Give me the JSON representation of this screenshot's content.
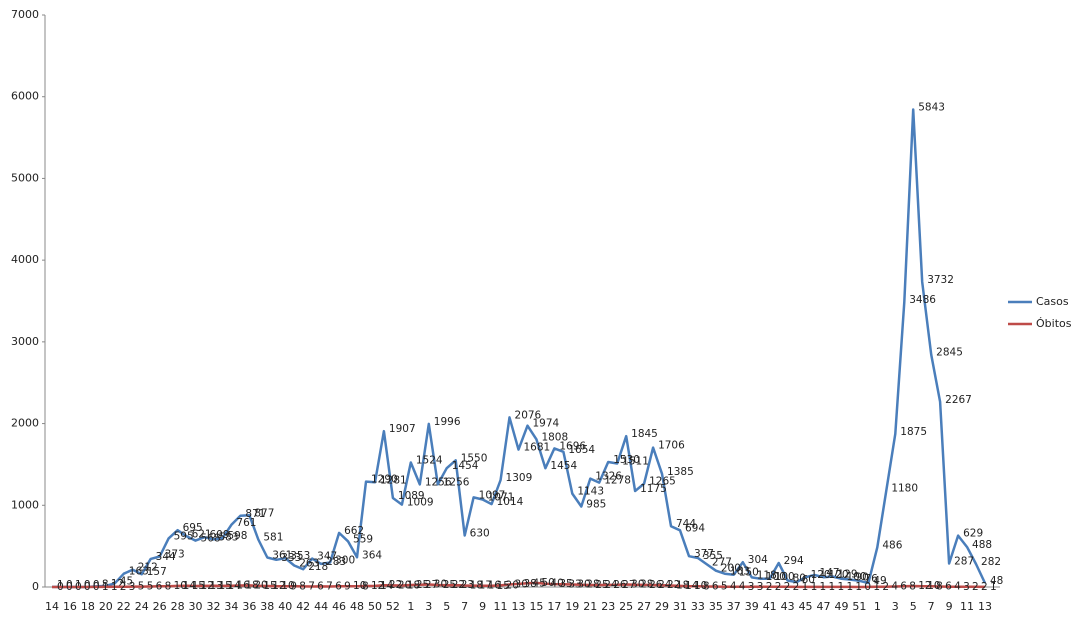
{
  "chart_data": {
    "type": "line",
    "categories": [
      "14",
      null,
      "16",
      null,
      "18",
      null,
      "20",
      null,
      "22",
      null,
      "24",
      null,
      "26",
      null,
      "28",
      null,
      "30",
      null,
      "32",
      null,
      "34",
      null,
      "36",
      null,
      "38",
      null,
      "40",
      null,
      "42",
      null,
      "44",
      null,
      "46",
      null,
      "48",
      null,
      "50",
      null,
      "52",
      null,
      "1",
      null,
      "3",
      null,
      "5",
      null,
      "7",
      null,
      "9",
      null,
      "11",
      null,
      "13",
      null,
      "15",
      null,
      "17",
      null,
      "19",
      null,
      "21",
      null,
      "23",
      null,
      "25",
      null,
      "27",
      null,
      "29",
      null,
      "31",
      null,
      "33",
      null,
      "35",
      null,
      "37",
      null,
      "39",
      null,
      "41",
      null,
      "43",
      null,
      "45",
      null,
      "47",
      null,
      "49",
      null,
      "51",
      null,
      "1",
      null,
      "3",
      null,
      "5",
      null,
      "7",
      null,
      "9",
      null,
      "11",
      null,
      "13"
    ],
    "series": [
      {
        "name": "Casos",
        "color": "#4a7ebb",
        "values": [
          1,
          0,
          1,
          0,
          0,
          8,
          12,
          45,
          163,
          212,
          157,
          344,
          373,
          595,
          695,
          621,
          568,
          609,
          583,
          598,
          761,
          871,
          877,
          581,
          361,
          333,
          353,
          263,
          218,
          347,
          283,
          300,
          662,
          559,
          364,
          1290,
          1281,
          1907,
          1089,
          1009,
          1524,
          1256,
          1996,
          1256,
          1454,
          1550,
          630,
          1097,
          1071,
          1014,
          1309,
          2076,
          1681,
          1974,
          1808,
          1454,
          1696,
          1654,
          1143,
          985,
          1326,
          1278,
          1530,
          1511,
          1845,
          1175,
          1265,
          1706,
          1385,
          744,
          694,
          377,
          355,
          277,
          200,
          163,
          150,
          304,
          118,
          100,
          100,
          294,
          80,
          60,
          120,
          147,
          120,
          129,
          100,
          90,
          76,
          49,
          486,
          1180,
          1875,
          3486,
          5843,
          3732,
          2845,
          2267,
          287,
          629,
          488,
          282,
          48
        ]
      },
      {
        "name": "Óbitos",
        "color": "#be4b48",
        "values": [
          0,
          0,
          0,
          0,
          0,
          1,
          1,
          2,
          3,
          5,
          5,
          6,
          8,
          10,
          14,
          15,
          12,
          13,
          15,
          14,
          16,
          18,
          20,
          15,
          12,
          10,
          9,
          8,
          7,
          6,
          7,
          6,
          9,
          10,
          8,
          12,
          14,
          22,
          20,
          18,
          25,
          27,
          30,
          25,
          22,
          23,
          18,
          17,
          16,
          15,
          20,
          30,
          38,
          45,
          50,
          40,
          35,
          33,
          30,
          28,
          25,
          24,
          26,
          27,
          30,
          28,
          26,
          24,
          22,
          18,
          14,
          10,
          8,
          6,
          5,
          4,
          4,
          3,
          3,
          2,
          2,
          2,
          2,
          1,
          1,
          1,
          1,
          1,
          1,
          1,
          0,
          1,
          2,
          4,
          6,
          8,
          12,
          10,
          8,
          6,
          4,
          3,
          2,
          2,
          1
        ]
      }
    ],
    "ylim": [
      0,
      7000
    ],
    "yticks": [
      0,
      1000,
      2000,
      3000,
      4000,
      5000,
      6000,
      7000
    ],
    "grid": false,
    "legend": "right"
  }
}
